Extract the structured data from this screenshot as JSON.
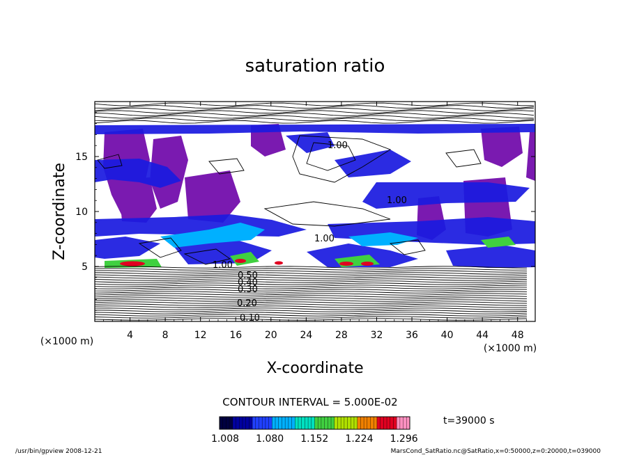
{
  "chart_data": {
    "type": "heatmap",
    "title": "saturation ratio",
    "xlabel": "X-coordinate",
    "ylabel": "Z-coordinate",
    "x_unit": "(×1000 m)",
    "y_unit": "(×1000 m)",
    "xlim": [
      0,
      50
    ],
    "ylim": [
      0,
      20
    ],
    "x_ticks": [
      4,
      8,
      12,
      16,
      20,
      24,
      28,
      32,
      36,
      40,
      44,
      48
    ],
    "y_ticks": [
      5,
      10,
      15
    ],
    "contour_interval": "CONTOUR INTERVAL = 5.000E-02",
    "contour_labels": [
      "0.10",
      "0.20",
      "0.30",
      "0.40",
      "0.50",
      "1.00"
    ],
    "colorbar": {
      "ticks": [
        "1.008",
        "1.080",
        "1.152",
        "1.224",
        "1.296"
      ],
      "range": [
        1.008,
        1.296
      ],
      "colors": [
        "#000040",
        "#0000a0",
        "#2040ff",
        "#00b0ff",
        "#00e0c0",
        "#40d040",
        "#b0e000",
        "#f08000",
        "#e00020",
        "#ff90c0"
      ]
    },
    "time_label": "t=39000 s",
    "colors": {
      "purple_high": "#7a1ab0",
      "blue_band": "#1a1ae0"
    }
  },
  "footer": {
    "left": "/usr/bin/gpview   2008-12-21",
    "right": "MarsCond_SatRatio.nc@SatRatio,x=0:50000,z=0:20000,t=039000"
  }
}
